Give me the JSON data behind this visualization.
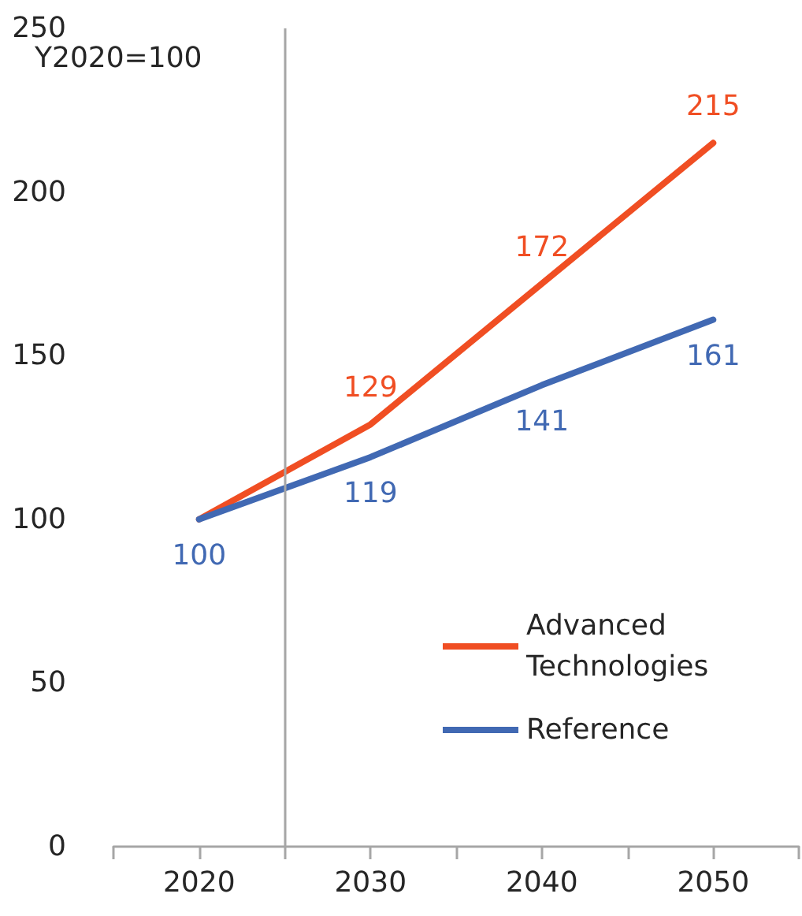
{
  "chart_data": {
    "type": "line",
    "ylabel": "Y2020=100",
    "x": [
      2020,
      2030,
      2040,
      2050
    ],
    "xlim": [
      2015,
      2055
    ],
    "xticks": [
      {
        "value": 2015,
        "label": null
      },
      {
        "value": 2020,
        "label": "2020"
      },
      {
        "value": 2025,
        "label": null
      },
      {
        "value": 2030,
        "label": "2030"
      },
      {
        "value": 2035,
        "label": null
      },
      {
        "value": 2040,
        "label": "2040"
      },
      {
        "value": 2045,
        "label": null
      },
      {
        "value": 2050,
        "label": "2050"
      },
      {
        "value": 2055,
        "label": null
      }
    ],
    "ylim": [
      0,
      250
    ],
    "yticks": [
      0,
      50,
      100,
      150,
      200,
      250
    ],
    "series": [
      {
        "name": "Advanced Technologies",
        "color": "#f04e23",
        "values": [
          100,
          129,
          172,
          215
        ],
        "value_labels": [
          null,
          "129",
          "172",
          "215"
        ]
      },
      {
        "name": "Reference",
        "color": "#4169b3",
        "values": [
          100,
          119,
          141,
          161
        ],
        "value_labels": [
          "100",
          "119",
          "141",
          "161"
        ]
      }
    ],
    "ref_lines": [
      {
        "axis": "x",
        "value": 2025,
        "color": "#a6a6a6"
      }
    ],
    "grid": false,
    "legend": "bottom right",
    "marker": "none",
    "line_style": "solid"
  }
}
